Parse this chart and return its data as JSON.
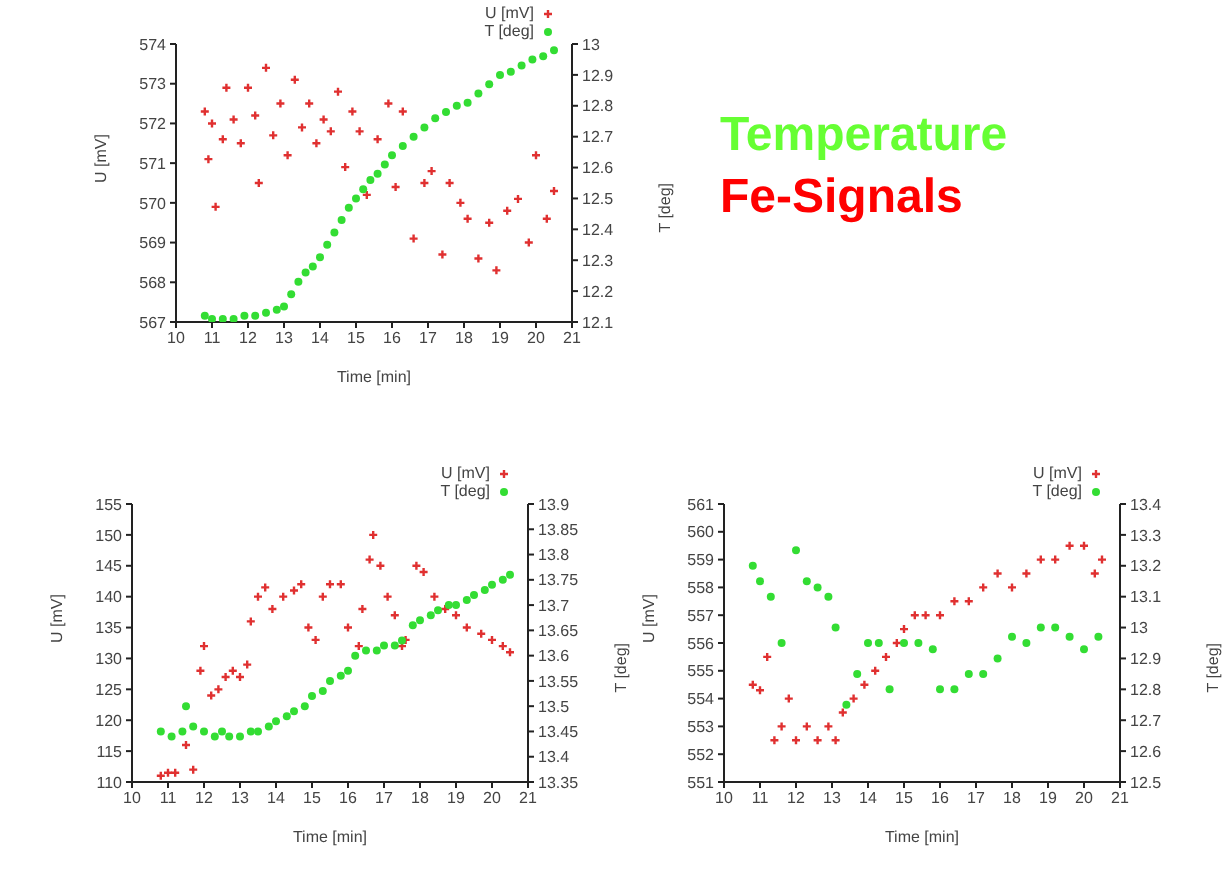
{
  "chart_data": [
    {
      "type": "scatter",
      "xlabel": "Time [min]",
      "ylabel": "U [mV]",
      "y2label": "T [deg]",
      "xlim": [
        10,
        21
      ],
      "xticks": [
        10,
        11,
        12,
        13,
        14,
        15,
        16,
        17,
        18,
        19,
        20,
        21
      ],
      "ylim": [
        567,
        574
      ],
      "yticks": [
        567,
        568,
        569,
        570,
        571,
        572,
        573,
        574
      ],
      "y2lim": [
        12.1,
        13
      ],
      "y2ticks": [
        12.1,
        12.2,
        12.3,
        12.4,
        12.5,
        12.6,
        12.7,
        12.8,
        12.9,
        13
      ],
      "legend": "top right",
      "series": [
        {
          "name": "U [mV]",
          "color": "#e03030",
          "marker": "cross",
          "x": [
            10.8,
            10.9,
            11.0,
            11.1,
            11.3,
            11.4,
            11.6,
            11.8,
            12.0,
            12.2,
            12.3,
            12.5,
            12.7,
            12.9,
            13.1,
            13.3,
            13.5,
            13.7,
            13.9,
            14.1,
            14.3,
            14.5,
            14.7,
            14.9,
            15.1,
            15.3,
            15.6,
            15.9,
            16.1,
            16.3,
            16.6,
            16.9,
            17.1,
            17.4,
            17.6,
            17.9,
            18.1,
            18.4,
            18.7,
            18.9,
            19.2,
            19.5,
            19.8,
            20.0,
            20.3,
            20.5
          ],
          "values": [
            572.3,
            571.1,
            572.0,
            569.9,
            571.6,
            572.9,
            572.1,
            571.5,
            572.9,
            572.2,
            570.5,
            573.4,
            571.7,
            572.5,
            571.2,
            573.1,
            571.9,
            572.5,
            571.5,
            572.1,
            571.8,
            572.8,
            570.9,
            572.3,
            571.8,
            570.2,
            571.6,
            572.5,
            570.4,
            572.3,
            569.1,
            570.5,
            570.8,
            568.7,
            570.5,
            570.0,
            569.6,
            568.6,
            569.5,
            568.3,
            569.8,
            570.1,
            569.0,
            571.2,
            569.6,
            570.3
          ]
        },
        {
          "name": "T [deg]",
          "color": "#33dd33",
          "marker": "circle",
          "axis": "y2",
          "x": [
            10.8,
            11.0,
            11.3,
            11.6,
            11.9,
            12.2,
            12.5,
            12.8,
            13.0,
            13.2,
            13.4,
            13.6,
            13.8,
            14.0,
            14.2,
            14.4,
            14.6,
            14.8,
            15.0,
            15.2,
            15.4,
            15.6,
            15.8,
            16.0,
            16.3,
            16.6,
            16.9,
            17.2,
            17.5,
            17.8,
            18.1,
            18.4,
            18.7,
            19.0,
            19.3,
            19.6,
            19.9,
            20.2,
            20.5
          ],
          "values": [
            12.12,
            12.11,
            12.11,
            12.11,
            12.12,
            12.12,
            12.13,
            12.14,
            12.15,
            12.19,
            12.23,
            12.26,
            12.28,
            12.31,
            12.35,
            12.39,
            12.43,
            12.47,
            12.5,
            12.53,
            12.56,
            12.58,
            12.61,
            12.64,
            12.67,
            12.7,
            12.73,
            12.76,
            12.78,
            12.8,
            12.81,
            12.84,
            12.87,
            12.9,
            12.91,
            12.93,
            12.95,
            12.96,
            12.98
          ]
        }
      ]
    },
    {
      "type": "other",
      "annotations": [
        "Temperature",
        "Fe-Signals"
      ],
      "colors": [
        "#66ff33",
        "#ff0000"
      ]
    },
    {
      "type": "scatter",
      "xlabel": "Time [min]",
      "ylabel": "U [mV]",
      "y2label": "T [deg]",
      "xlim": [
        10,
        21
      ],
      "xticks": [
        10,
        11,
        12,
        13,
        14,
        15,
        16,
        17,
        18,
        19,
        20,
        21
      ],
      "ylim": [
        110,
        155
      ],
      "yticks": [
        110,
        115,
        120,
        125,
        130,
        135,
        140,
        145,
        150,
        155
      ],
      "y2lim": [
        13.35,
        13.9
      ],
      "y2ticks": [
        13.35,
        13.4,
        13.45,
        13.5,
        13.55,
        13.6,
        13.65,
        13.7,
        13.75,
        13.8,
        13.85,
        13.9
      ],
      "legend": "top right",
      "series": [
        {
          "name": "U [mV]",
          "color": "#e03030",
          "marker": "cross",
          "x": [
            10.8,
            11.0,
            11.2,
            11.5,
            11.7,
            11.9,
            12.0,
            12.2,
            12.4,
            12.6,
            12.8,
            13.0,
            13.2,
            13.3,
            13.5,
            13.7,
            13.9,
            14.2,
            14.5,
            14.7,
            14.9,
            15.1,
            15.3,
            15.5,
            15.8,
            16.0,
            16.3,
            16.4,
            16.6,
            16.7,
            16.9,
            17.1,
            17.3,
            17.5,
            17.6,
            17.9,
            18.1,
            18.4,
            18.7,
            19.0,
            19.3,
            19.7,
            20.0,
            20.3,
            20.5
          ],
          "values": [
            111,
            111.5,
            111.5,
            116,
            112,
            128,
            132,
            124,
            125,
            127,
            128,
            127,
            129,
            136,
            140,
            141.5,
            138,
            140,
            141,
            142,
            135,
            133,
            140,
            142,
            142,
            135,
            132,
            138,
            146,
            150,
            145,
            140,
            137,
            132,
            133,
            145,
            144,
            140,
            138,
            137,
            135,
            134,
            133,
            132,
            131
          ]
        },
        {
          "name": "T [deg]",
          "color": "#33dd33",
          "marker": "circle",
          "axis": "y2",
          "x": [
            10.8,
            11.1,
            11.4,
            11.5,
            11.7,
            12.0,
            12.3,
            12.5,
            12.7,
            13.0,
            13.3,
            13.5,
            13.8,
            14.0,
            14.3,
            14.5,
            14.8,
            15.0,
            15.3,
            15.5,
            15.8,
            16.0,
            16.2,
            16.5,
            16.8,
            17.0,
            17.3,
            17.5,
            17.8,
            18.0,
            18.3,
            18.5,
            18.8,
            19.0,
            19.3,
            19.5,
            19.8,
            20.0,
            20.3,
            20.5
          ],
          "values": [
            13.45,
            13.44,
            13.45,
            13.5,
            13.46,
            13.45,
            13.44,
            13.45,
            13.44,
            13.44,
            13.45,
            13.45,
            13.46,
            13.47,
            13.48,
            13.49,
            13.5,
            13.52,
            13.53,
            13.55,
            13.56,
            13.57,
            13.6,
            13.61,
            13.61,
            13.62,
            13.62,
            13.63,
            13.66,
            13.67,
            13.68,
            13.69,
            13.7,
            13.7,
            13.71,
            13.72,
            13.73,
            13.74,
            13.75,
            13.76
          ]
        }
      ]
    },
    {
      "type": "scatter",
      "xlabel": "Time [min]",
      "ylabel": "U [mV]",
      "y2label": "T [deg]",
      "xlim": [
        10,
        21
      ],
      "xticks": [
        10,
        11,
        12,
        13,
        14,
        15,
        16,
        17,
        18,
        19,
        20,
        21
      ],
      "ylim": [
        551,
        561
      ],
      "yticks": [
        551,
        552,
        553,
        554,
        555,
        556,
        557,
        558,
        559,
        560,
        561
      ],
      "y2lim": [
        12.5,
        13.4
      ],
      "y2ticks": [
        12.5,
        12.6,
        12.7,
        12.8,
        12.9,
        13,
        13.1,
        13.2,
        13.3,
        13.4
      ],
      "legend": "top right",
      "series": [
        {
          "name": "U [mV]",
          "color": "#e03030",
          "marker": "cross",
          "x": [
            10.8,
            11.0,
            11.2,
            11.4,
            11.6,
            11.8,
            12.0,
            12.3,
            12.6,
            12.9,
            13.1,
            13.3,
            13.6,
            13.9,
            14.2,
            14.5,
            14.8,
            15.0,
            15.3,
            15.6,
            16.0,
            16.4,
            16.8,
            17.2,
            17.6,
            18.0,
            18.4,
            18.8,
            19.2,
            19.6,
            20.0,
            20.3,
            20.5
          ],
          "values": [
            554.5,
            554.3,
            555.5,
            552.5,
            553,
            554,
            552.5,
            553,
            552.5,
            553,
            552.5,
            553.5,
            554,
            554.5,
            555,
            555.5,
            556,
            556.5,
            557,
            557,
            557,
            557.5,
            557.5,
            558,
            558.5,
            558,
            558.5,
            559,
            559,
            559.5,
            559.5,
            558.5,
            559
          ]
        },
        {
          "name": "T [deg]",
          "color": "#33dd33",
          "marker": "circle",
          "axis": "y2",
          "x": [
            10.8,
            11.0,
            11.3,
            11.6,
            12.0,
            12.3,
            12.6,
            12.9,
            13.1,
            13.4,
            13.7,
            14.0,
            14.3,
            14.6,
            15.0,
            15.4,
            15.8,
            16.0,
            16.4,
            16.8,
            17.2,
            17.6,
            18.0,
            18.4,
            18.8,
            19.2,
            19.6,
            20.0,
            20.4
          ],
          "values": [
            13.2,
            13.15,
            13.1,
            12.95,
            13.25,
            13.15,
            13.13,
            13.1,
            13.0,
            12.75,
            12.85,
            12.95,
            12.95,
            12.8,
            12.95,
            12.95,
            12.93,
            12.8,
            12.8,
            12.85,
            12.85,
            12.9,
            12.97,
            12.95,
            13.0,
            13.0,
            12.97,
            12.93,
            12.97
          ]
        }
      ]
    }
  ]
}
